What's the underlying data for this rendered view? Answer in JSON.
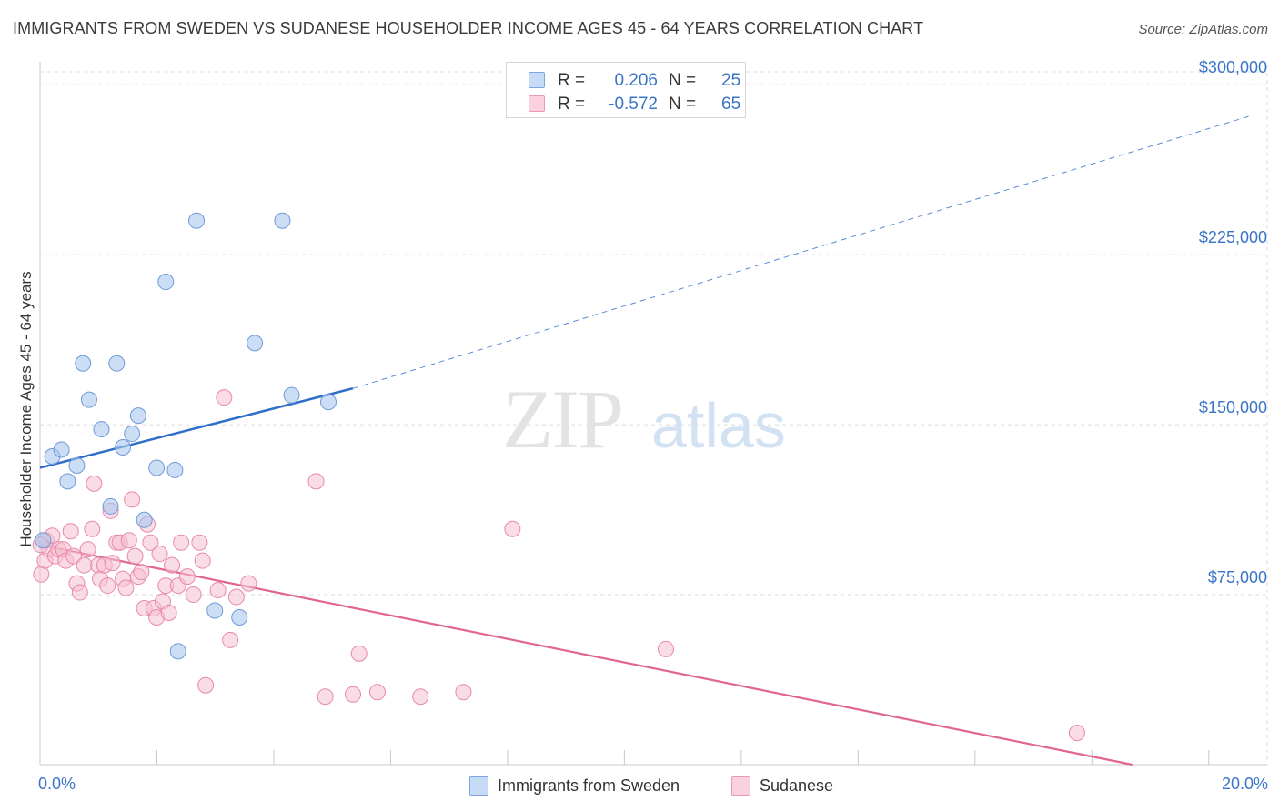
{
  "header": {
    "title": "IMMIGRANTS FROM SWEDEN VS SUDANESE HOUSEHOLDER INCOME AGES 45 - 64 YEARS CORRELATION CHART",
    "source": "Source: ZipAtlas.com"
  },
  "watermark": {
    "zip": "ZIP",
    "atlas": "atlas"
  },
  "legend": {
    "rows": [
      {
        "r_label": "R =",
        "r_value": "0.206",
        "n_label": "N =",
        "n_value": "25"
      },
      {
        "r_label": "R =",
        "r_value": "-0.572",
        "n_label": "N =",
        "n_value": "65"
      }
    ]
  },
  "colors": {
    "sweden_fill": "#a9c8f0",
    "sweden_stroke": "#6f9ad6",
    "sweden_line": "#2f6fca",
    "sudanese_fill": "#f6bfd1",
    "sudanese_stroke": "#e889a9",
    "sudanese_line": "#e0668f",
    "tick_text": "#3a74c9",
    "grid": "#dcdcdc"
  },
  "chart_data": {
    "type": "scatter",
    "title": "IMMIGRANTS FROM SWEDEN VS SUDANESE HOUSEHOLDER INCOME AGES 45 - 64 YEARS CORRELATION CHART",
    "xlabel": "",
    "ylabel": "Householder Income Ages 45 - 64 years",
    "xlim": [
      0,
      20
    ],
    "ylim": [
      0,
      312500
    ],
    "x_unit": "%",
    "x_tick_labels": [
      "0.0%",
      "20.0%"
    ],
    "y_ticks": [
      75000,
      150000,
      225000,
      300000
    ],
    "y_tick_labels": [
      "$75,000",
      "$150,000",
      "$225,000",
      "$300,000"
    ],
    "grid": true,
    "legend_position": "top-center",
    "series": [
      {
        "name": "Immigrants from Sweden",
        "color": "#a9c8f0",
        "r": 0.206,
        "n": 25,
        "points": [
          [
            0.05,
            99000
          ],
          [
            0.2,
            136000
          ],
          [
            0.35,
            139000
          ],
          [
            0.45,
            125000
          ],
          [
            0.6,
            132000
          ],
          [
            0.7,
            177000
          ],
          [
            0.8,
            161000
          ],
          [
            1.0,
            148000
          ],
          [
            1.15,
            114000
          ],
          [
            1.25,
            177000
          ],
          [
            1.35,
            140000
          ],
          [
            1.5,
            146000
          ],
          [
            1.6,
            154000
          ],
          [
            1.7,
            108000
          ],
          [
            1.9,
            131000
          ],
          [
            2.05,
            213000
          ],
          [
            2.2,
            130000
          ],
          [
            2.25,
            50000
          ],
          [
            2.55,
            240000
          ],
          [
            2.85,
            68000
          ],
          [
            3.25,
            65000
          ],
          [
            3.5,
            186000
          ],
          [
            3.95,
            240000
          ],
          [
            4.1,
            163000
          ],
          [
            4.7,
            160000
          ]
        ],
        "trend": {
          "x": [
            0,
            5.1
          ],
          "y": [
            131000,
            166000
          ],
          "extended_x": [
            5.1,
            19.7
          ],
          "extended_y": [
            166000,
            286000
          ]
        }
      },
      {
        "name": "Sudanese",
        "color": "#f6bfd1",
        "r": -0.572,
        "n": 65,
        "points": [
          [
            0.02,
            84000
          ],
          [
            0.08,
            90000
          ],
          [
            0.1,
            99000
          ],
          [
            0.15,
            95000
          ],
          [
            0.2,
            101000
          ],
          [
            0.25,
            92000
          ],
          [
            0.3,
            95000
          ],
          [
            0.38,
            95000
          ],
          [
            0.42,
            90000
          ],
          [
            0.5,
            103000
          ],
          [
            0.55,
            92000
          ],
          [
            0.6,
            80000
          ],
          [
            0.65,
            76000
          ],
          [
            0.72,
            88000
          ],
          [
            0.78,
            95000
          ],
          [
            0.85,
            104000
          ],
          [
            0.88,
            124000
          ],
          [
            0.95,
            88000
          ],
          [
            0.98,
            82000
          ],
          [
            1.05,
            88000
          ],
          [
            1.1,
            79000
          ],
          [
            1.15,
            112000
          ],
          [
            1.18,
            89000
          ],
          [
            1.25,
            98000
          ],
          [
            1.3,
            98000
          ],
          [
            1.35,
            82000
          ],
          [
            1.4,
            78000
          ],
          [
            1.45,
            99000
          ],
          [
            1.5,
            117000
          ],
          [
            1.55,
            92000
          ],
          [
            1.6,
            83000
          ],
          [
            1.65,
            85000
          ],
          [
            1.7,
            69000
          ],
          [
            1.75,
            106000
          ],
          [
            1.8,
            98000
          ],
          [
            1.85,
            69000
          ],
          [
            1.9,
            65000
          ],
          [
            1.95,
            93000
          ],
          [
            2.0,
            72000
          ],
          [
            2.05,
            79000
          ],
          [
            2.1,
            67000
          ],
          [
            2.15,
            88000
          ],
          [
            2.25,
            79000
          ],
          [
            2.3,
            98000
          ],
          [
            2.4,
            83000
          ],
          [
            2.5,
            75000
          ],
          [
            2.6,
            98000
          ],
          [
            2.65,
            90000
          ],
          [
            2.7,
            35000
          ],
          [
            2.9,
            77000
          ],
          [
            3.0,
            162000
          ],
          [
            3.1,
            55000
          ],
          [
            3.2,
            74000
          ],
          [
            3.4,
            80000
          ],
          [
            4.5,
            125000
          ],
          [
            4.65,
            30000
          ],
          [
            5.2,
            49000
          ],
          [
            5.1,
            31000
          ],
          [
            5.5,
            32000
          ],
          [
            6.2,
            30000
          ],
          [
            6.9,
            32000
          ],
          [
            7.7,
            104000
          ],
          [
            10.2,
            51000
          ],
          [
            16.9,
            14000
          ],
          [
            0.01,
            97000
          ]
        ],
        "trend": {
          "x": [
            0,
            17.8
          ],
          "y": [
            97000,
            0
          ]
        }
      }
    ]
  }
}
